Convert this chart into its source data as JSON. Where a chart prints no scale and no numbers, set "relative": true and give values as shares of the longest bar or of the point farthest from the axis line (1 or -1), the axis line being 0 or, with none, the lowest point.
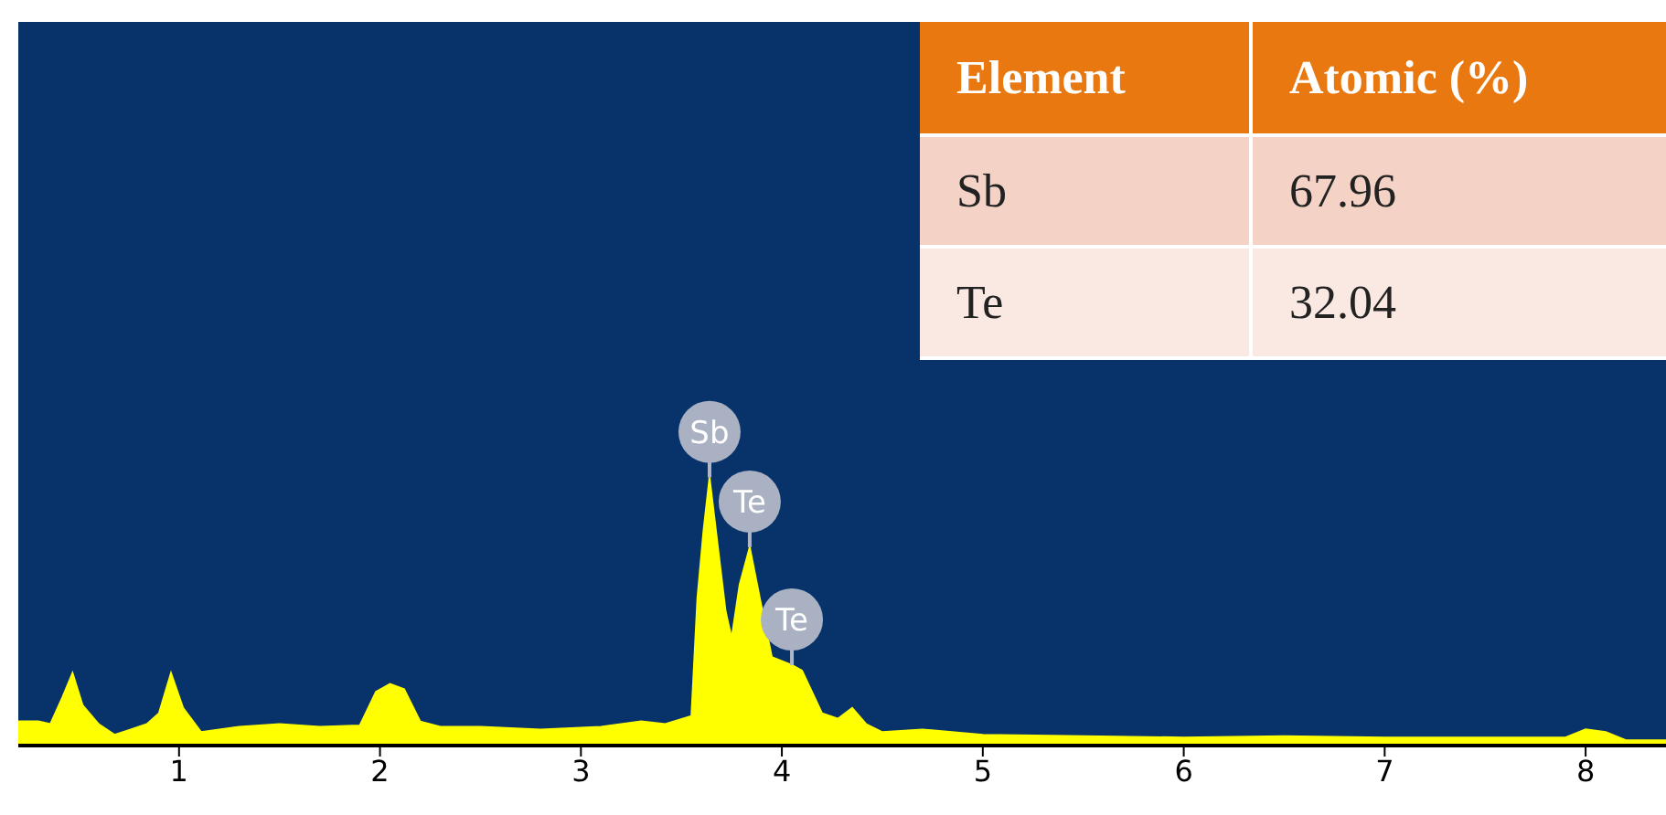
{
  "chart_data": {
    "type": "area",
    "relative": true,
    "color": "#ffff00",
    "x": [
      0.2,
      0.3,
      0.36,
      0.42,
      0.47,
      0.52,
      0.6,
      0.68,
      0.76,
      0.84,
      0.9,
      0.96,
      1.02,
      1.11,
      1.3,
      1.5,
      1.7,
      1.9,
      1.98,
      2.05,
      2.12,
      2.2,
      2.3,
      2.5,
      2.8,
      3.1,
      3.3,
      3.42,
      3.55,
      3.58,
      3.61,
      3.64,
      3.68,
      3.72,
      3.75,
      3.79,
      3.84,
      3.89,
      3.95,
      4.05,
      4.1,
      4.2,
      4.28,
      4.35,
      4.42,
      4.5,
      4.7,
      5.0,
      5.5,
      6.0,
      6.5,
      7.0,
      7.5,
      7.9,
      8.0,
      8.1,
      8.2,
      8.4
    ],
    "values": [
      0.09,
      0.09,
      0.08,
      0.18,
      0.27,
      0.15,
      0.08,
      0.04,
      0.06,
      0.08,
      0.12,
      0.27,
      0.14,
      0.05,
      0.07,
      0.08,
      0.07,
      0.075,
      0.2,
      0.23,
      0.21,
      0.09,
      0.07,
      0.07,
      0.06,
      0.07,
      0.09,
      0.08,
      0.11,
      0.55,
      0.8,
      1.0,
      0.75,
      0.5,
      0.4,
      0.6,
      0.74,
      0.55,
      0.33,
      0.3,
      0.28,
      0.12,
      0.1,
      0.14,
      0.08,
      0.05,
      0.06,
      0.04,
      0.035,
      0.03,
      0.035,
      0.03,
      0.03,
      0.03,
      0.06,
      0.05,
      0.02,
      0.02
    ],
    "xlim": [
      0.2,
      8.4
    ],
    "xticks": [
      1,
      2,
      3,
      4,
      5,
      6,
      7,
      8
    ],
    "annotations": [
      {
        "text": "Sb",
        "x": 3.64,
        "y": 1.0
      },
      {
        "text": "Te",
        "x": 3.84,
        "y": 0.74
      },
      {
        "text": "Te",
        "x": 4.05,
        "y": 0.3
      },
      "Element",
      "Atomic (%)",
      "Sb",
      "67.96",
      "Te",
      "32.04"
    ]
  }
}
